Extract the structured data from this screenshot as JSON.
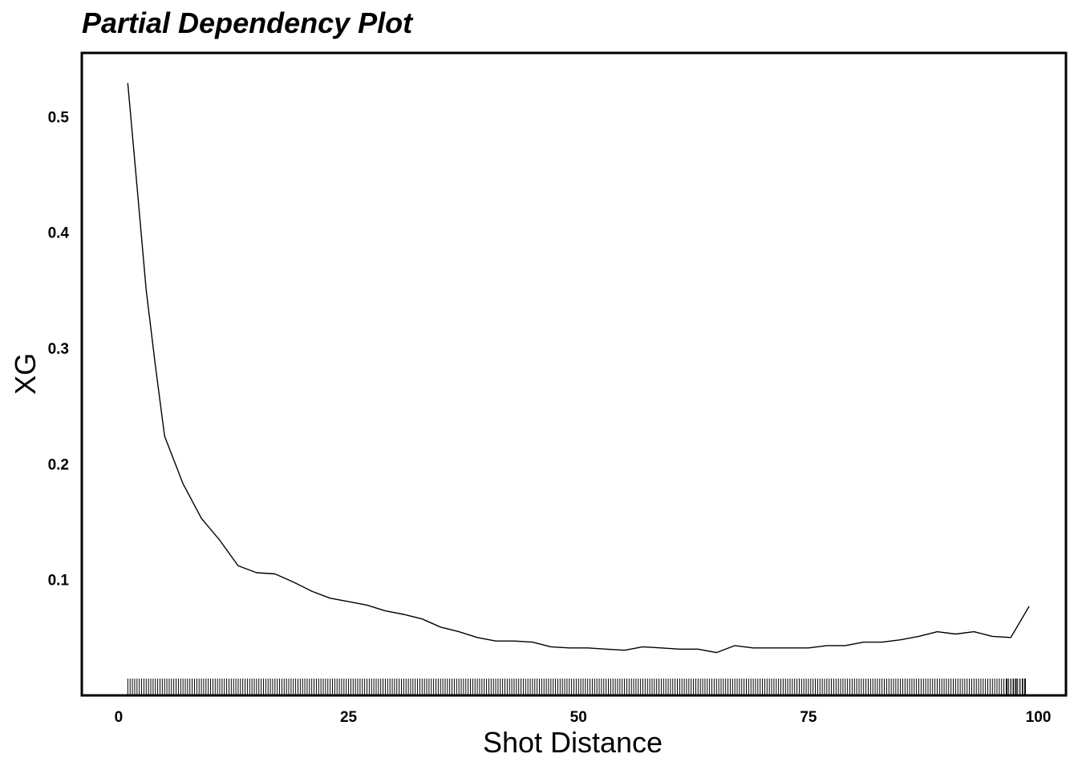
{
  "chart_data": {
    "type": "line",
    "title": "Partial Dependency Plot",
    "xlabel": "Shot Distance",
    "ylabel": "XG",
    "xlim": [
      -4,
      103
    ],
    "ylim": [
      0.0,
      0.555
    ],
    "xticks": [
      0,
      25,
      50,
      75,
      100
    ],
    "yticks": [
      0.1,
      0.2,
      0.3,
      0.4,
      0.5
    ],
    "grid": false,
    "legend": "none",
    "line_color": "#000000",
    "series": [
      {
        "x": [
          1,
          2,
          3,
          4,
          5,
          7,
          9,
          11,
          13,
          15,
          17,
          19,
          21,
          23,
          25,
          27,
          29,
          31,
          33,
          35,
          37,
          39,
          41,
          43,
          45,
          47,
          49,
          51,
          53,
          55,
          57,
          59,
          61,
          63,
          65,
          67,
          69,
          71,
          73,
          75,
          77,
          79,
          81,
          83,
          85,
          87,
          89,
          91,
          93,
          95,
          97,
          99
        ],
        "y": [
          0.529,
          0.44,
          0.35,
          0.285,
          0.224,
          0.183,
          0.153,
          0.134,
          0.112,
          0.106,
          0.105,
          0.098,
          0.09,
          0.084,
          0.081,
          0.078,
          0.073,
          0.07,
          0.066,
          0.059,
          0.055,
          0.05,
          0.047,
          0.047,
          0.046,
          0.042,
          0.041,
          0.041,
          0.04,
          0.039,
          0.042,
          0.041,
          0.04,
          0.04,
          0.037,
          0.043,
          0.041,
          0.041,
          0.041,
          0.041,
          0.043,
          0.043,
          0.046,
          0.046,
          0.048,
          0.051,
          0.055,
          0.053,
          0.055,
          0.051,
          0.05,
          0.077
        ]
      }
    ],
    "rug": {
      "from": 1,
      "to": 98.5,
      "step": 0.25,
      "extra": [
        96.6,
        97.0,
        97.3,
        97.6,
        98.0,
        98.3,
        98.6
      ]
    }
  }
}
